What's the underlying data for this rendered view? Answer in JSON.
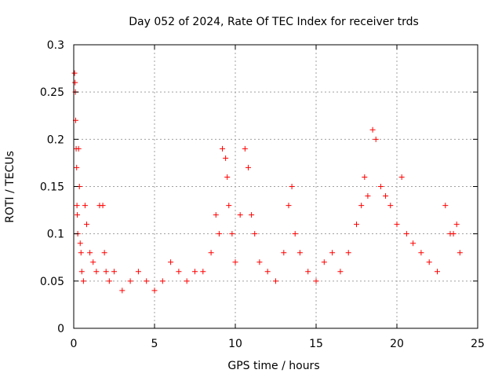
{
  "chart_data": {
    "type": "scatter",
    "title": "Day 052 of 2024, Rate Of TEC Index for receiver trds",
    "xlabel": "GPS time / hours",
    "ylabel": "ROTI / TECUs",
    "xlim": [
      0,
      25
    ],
    "ylim": [
      0,
      0.3
    ],
    "xticks": [
      0,
      5,
      10,
      15,
      20,
      25
    ],
    "yticks": [
      0,
      0.05,
      0.1,
      0.15,
      0.2,
      0.25,
      0.3
    ],
    "xtick_labels": [
      "0",
      "5",
      "10",
      "15",
      "20",
      "25"
    ],
    "ytick_labels": [
      "0",
      "0.05",
      "0.1",
      "0.15",
      "0.2",
      "0.25",
      "0.3"
    ],
    "grid": true,
    "marker": "+",
    "color": "#ff0000",
    "series": [
      {
        "name": "ROTI",
        "x": [
          0.05,
          0.08,
          0.1,
          0.12,
          0.15,
          0.18,
          0.2,
          0.22,
          0.25,
          0.3,
          0.35,
          0.4,
          0.45,
          0.5,
          0.6,
          0.7,
          0.8,
          1.0,
          1.2,
          1.4,
          1.6,
          1.8,
          1.9,
          2.0,
          2.2,
          2.5,
          3.0,
          3.5,
          4.0,
          4.5,
          5.0,
          5.5,
          6.0,
          6.5,
          7.0,
          7.5,
          8.0,
          8.5,
          8.8,
          9.0,
          9.2,
          9.4,
          9.5,
          9.6,
          9.8,
          10.0,
          10.3,
          10.6,
          10.8,
          11.0,
          11.2,
          11.5,
          12.0,
          12.5,
          13.0,
          13.3,
          13.5,
          13.7,
          14.0,
          14.5,
          15.0,
          15.5,
          16.0,
          16.5,
          17.0,
          17.5,
          17.8,
          18.0,
          18.2,
          18.5,
          18.7,
          19.0,
          19.3,
          19.6,
          20.0,
          20.3,
          20.6,
          21.0,
          21.5,
          22.0,
          22.5,
          23.0,
          23.3,
          23.5,
          23.7,
          23.9
        ],
        "y": [
          0.27,
          0.26,
          0.25,
          0.22,
          0.19,
          0.17,
          0.13,
          0.12,
          0.1,
          0.19,
          0.15,
          0.09,
          0.08,
          0.06,
          0.05,
          0.13,
          0.11,
          0.08,
          0.07,
          0.06,
          0.13,
          0.13,
          0.08,
          0.06,
          0.05,
          0.06,
          0.04,
          0.05,
          0.06,
          0.05,
          0.04,
          0.05,
          0.07,
          0.06,
          0.05,
          0.06,
          0.06,
          0.08,
          0.12,
          0.1,
          0.19,
          0.18,
          0.16,
          0.13,
          0.1,
          0.07,
          0.12,
          0.19,
          0.17,
          0.12,
          0.1,
          0.07,
          0.06,
          0.05,
          0.08,
          0.13,
          0.15,
          0.1,
          0.08,
          0.06,
          0.05,
          0.07,
          0.08,
          0.06,
          0.08,
          0.11,
          0.13,
          0.16,
          0.14,
          0.21,
          0.2,
          0.15,
          0.14,
          0.13,
          0.11,
          0.16,
          0.1,
          0.09,
          0.08,
          0.07,
          0.06,
          0.13,
          0.1,
          0.1,
          0.11,
          0.08
        ]
      }
    ]
  }
}
